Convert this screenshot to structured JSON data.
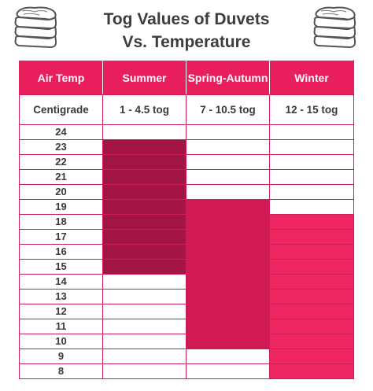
{
  "title": {
    "line1": "Tog Values of Duvets",
    "line2": "Vs. Temperature"
  },
  "headers": [
    "Air Temp",
    "Summer",
    "Spring-Autumn",
    "Winter"
  ],
  "subheaders": [
    "Centigrade",
    "1 - 4.5 tog",
    "7 - 10.5 tog",
    "12 - 15 tog"
  ],
  "colors": {
    "header": "#e91e5d",
    "summer": "#a31546",
    "spring_autumn": "#d11a54",
    "winter": "#ee2660",
    "border": "#cc1d55"
  },
  "icons": [
    "folded-duvet-icon",
    "folded-duvet-icon"
  ],
  "rows": [
    {
      "temp": "24",
      "summer": false,
      "spring_autumn": false,
      "winter": false
    },
    {
      "temp": "23",
      "summer": true,
      "spring_autumn": false,
      "winter": false
    },
    {
      "temp": "22",
      "summer": true,
      "spring_autumn": false,
      "winter": false
    },
    {
      "temp": "21",
      "summer": true,
      "spring_autumn": false,
      "winter": false
    },
    {
      "temp": "20",
      "summer": true,
      "spring_autumn": false,
      "winter": false
    },
    {
      "temp": "19",
      "summer": true,
      "spring_autumn": true,
      "winter": false
    },
    {
      "temp": "18",
      "summer": true,
      "spring_autumn": true,
      "winter": true
    },
    {
      "temp": "17",
      "summer": true,
      "spring_autumn": true,
      "winter": true
    },
    {
      "temp": "16",
      "summer": true,
      "spring_autumn": true,
      "winter": true
    },
    {
      "temp": "15",
      "summer": true,
      "spring_autumn": true,
      "winter": true
    },
    {
      "temp": "14",
      "summer": false,
      "spring_autumn": true,
      "winter": true
    },
    {
      "temp": "13",
      "summer": false,
      "spring_autumn": true,
      "winter": true
    },
    {
      "temp": "12",
      "summer": false,
      "spring_autumn": true,
      "winter": true
    },
    {
      "temp": "11",
      "summer": false,
      "spring_autumn": true,
      "winter": true
    },
    {
      "temp": "10",
      "summer": false,
      "spring_autumn": true,
      "winter": true
    },
    {
      "temp": "9",
      "summer": false,
      "spring_autumn": false,
      "winter": true
    },
    {
      "temp": "8",
      "summer": false,
      "spring_autumn": false,
      "winter": true
    }
  ]
}
